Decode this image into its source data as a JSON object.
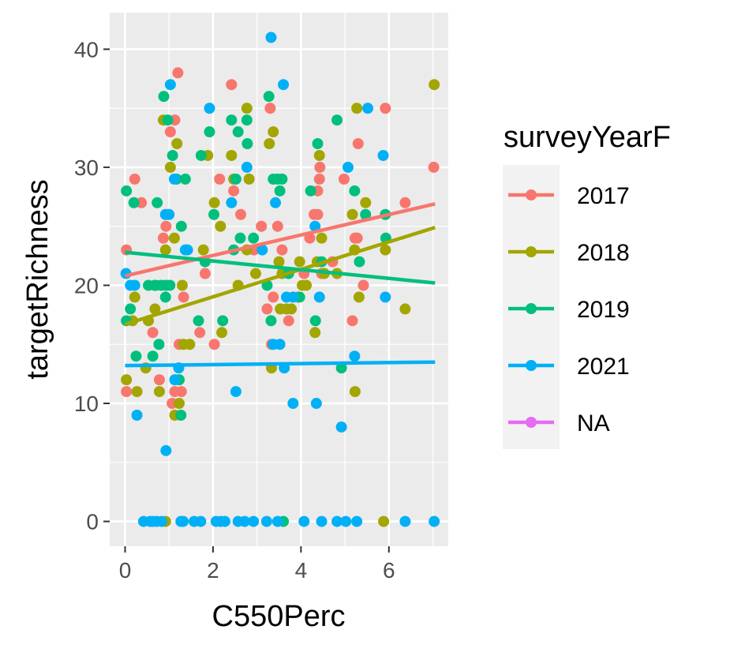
{
  "chart_data": {
    "type": "scatter",
    "xlabel": "C550Perc",
    "ylabel": "targetRichness",
    "xlim": [
      -0.35,
      7.35
    ],
    "ylim": [
      -2.1,
      43.1
    ],
    "x_ticks": [
      0,
      2,
      4,
      6
    ],
    "y_ticks": [
      0,
      10,
      20,
      30,
      40
    ],
    "grid": true,
    "legend": {
      "title": "surveyYearF",
      "position": "right"
    },
    "series": [
      {
        "name": "2017",
        "color": "#F8766D",
        "trend": [
          [
            0,
            20.8
          ],
          [
            7.05,
            26.9
          ]
        ],
        "points": [
          [
            0.03,
            23
          ],
          [
            0.03,
            11
          ],
          [
            0.22,
            29
          ],
          [
            0.37,
            27
          ],
          [
            0.63,
            16
          ],
          [
            0.78,
            12
          ],
          [
            0.87,
            24
          ],
          [
            0.93,
            25
          ],
          [
            1.03,
            33
          ],
          [
            1.07,
            10
          ],
          [
            1.13,
            11
          ],
          [
            1.13,
            34
          ],
          [
            1.2,
            38
          ],
          [
            1.23,
            15
          ],
          [
            1.28,
            11
          ],
          [
            1.33,
            19
          ],
          [
            1.7,
            16
          ],
          [
            1.82,
            21
          ],
          [
            2.03,
            15
          ],
          [
            2.15,
            29
          ],
          [
            2.42,
            37
          ],
          [
            2.47,
            28
          ],
          [
            2.63,
            26
          ],
          [
            2.93,
            23
          ],
          [
            3.1,
            25
          ],
          [
            3.23,
            18
          ],
          [
            3.3,
            35
          ],
          [
            3.33,
            15
          ],
          [
            3.37,
            19
          ],
          [
            3.47,
            25
          ],
          [
            3.57,
            23
          ],
          [
            3.72,
            17
          ],
          [
            3.93,
            19
          ],
          [
            4.07,
            21
          ],
          [
            4.2,
            24
          ],
          [
            4.3,
            26
          ],
          [
            4.38,
            26
          ],
          [
            4.38,
            28
          ],
          [
            4.42,
            29
          ],
          [
            4.43,
            30
          ],
          [
            4.47,
            21
          ],
          [
            4.72,
            22
          ],
          [
            4.98,
            29
          ],
          [
            5.17,
            17
          ],
          [
            5.23,
            24
          ],
          [
            5.28,
            24
          ],
          [
            5.3,
            32
          ],
          [
            5.42,
            20
          ],
          [
            5.92,
            35
          ],
          [
            6.37,
            27
          ],
          [
            7.02,
            30
          ]
        ]
      },
      {
        "name": "2018",
        "color": "#A3A500",
        "trend": [
          [
            0,
            16.7
          ],
          [
            7.05,
            24.9
          ]
        ],
        "points": [
          [
            0.03,
            12
          ],
          [
            0.17,
            17
          ],
          [
            0.22,
            19
          ],
          [
            0.27,
            11
          ],
          [
            0.47,
            13
          ],
          [
            0.53,
            17
          ],
          [
            0.68,
            18
          ],
          [
            0.78,
            11
          ],
          [
            0.87,
            34
          ],
          [
            0.92,
            23
          ],
          [
            0.92,
            0
          ],
          [
            1.03,
            30
          ],
          [
            1.12,
            24
          ],
          [
            1.13,
            9
          ],
          [
            1.18,
            32
          ],
          [
            1.23,
            10
          ],
          [
            1.3,
            20
          ],
          [
            1.33,
            15
          ],
          [
            1.47,
            15
          ],
          [
            1.78,
            23
          ],
          [
            1.88,
            31
          ],
          [
            2.03,
            27
          ],
          [
            2.17,
            25
          ],
          [
            2.2,
            16
          ],
          [
            2.42,
            31
          ],
          [
            2.47,
            29
          ],
          [
            2.57,
            20
          ],
          [
            2.77,
            35
          ],
          [
            2.77,
            23
          ],
          [
            2.82,
            29
          ],
          [
            2.97,
            21
          ],
          [
            3.28,
            32
          ],
          [
            3.33,
            13
          ],
          [
            3.37,
            33
          ],
          [
            3.5,
            22
          ],
          [
            3.53,
            18
          ],
          [
            3.57,
            21
          ],
          [
            3.67,
            18
          ],
          [
            3.78,
            18
          ],
          [
            3.97,
            22
          ],
          [
            4.03,
            20
          ],
          [
            4.12,
            20
          ],
          [
            4.32,
            16
          ],
          [
            4.37,
            22
          ],
          [
            4.42,
            31
          ],
          [
            4.47,
            24
          ],
          [
            4.53,
            21
          ],
          [
            4.82,
            21
          ],
          [
            5.17,
            26
          ],
          [
            5.22,
            23
          ],
          [
            5.23,
            11
          ],
          [
            5.27,
            35
          ],
          [
            5.32,
            19
          ],
          [
            5.47,
            27
          ],
          [
            5.92,
            23
          ],
          [
            6.37,
            18
          ],
          [
            5.88,
            0
          ],
          [
            7.03,
            37
          ]
        ]
      },
      {
        "name": "2019",
        "color": "#00BF7D",
        "trend": [
          [
            0,
            22.8
          ],
          [
            7.05,
            20.2
          ]
        ],
        "points": [
          [
            0.03,
            28
          ],
          [
            0.03,
            17
          ],
          [
            0.12,
            18
          ],
          [
            0.2,
            27
          ],
          [
            0.25,
            14
          ],
          [
            0.53,
            20
          ],
          [
            0.63,
            14
          ],
          [
            0.67,
            20
          ],
          [
            0.7,
            20
          ],
          [
            0.73,
            27
          ],
          [
            0.77,
            15
          ],
          [
            0.82,
            20
          ],
          [
            0.88,
            36
          ],
          [
            0.92,
            19
          ],
          [
            0.93,
            20
          ],
          [
            0.97,
            34
          ],
          [
            1.02,
            20
          ],
          [
            1.08,
            31
          ],
          [
            1.17,
            29
          ],
          [
            1.23,
            12
          ],
          [
            1.27,
            9
          ],
          [
            1.28,
            25
          ],
          [
            1.37,
            29
          ],
          [
            1.67,
            17
          ],
          [
            1.73,
            31
          ],
          [
            1.82,
            22
          ],
          [
            1.92,
            33
          ],
          [
            2.02,
            26
          ],
          [
            2.22,
            17
          ],
          [
            2.42,
            34
          ],
          [
            2.47,
            23
          ],
          [
            2.52,
            29
          ],
          [
            2.57,
            33
          ],
          [
            2.62,
            24
          ],
          [
            2.77,
            34
          ],
          [
            2.78,
            32
          ],
          [
            2.92,
            24
          ],
          [
            3.23,
            20
          ],
          [
            3.27,
            36
          ],
          [
            3.32,
            17
          ],
          [
            3.37,
            29
          ],
          [
            3.47,
            29
          ],
          [
            3.52,
            28
          ],
          [
            3.57,
            29
          ],
          [
            3.6,
            0
          ],
          [
            3.72,
            21
          ],
          [
            3.97,
            19
          ],
          [
            4.22,
            28
          ],
          [
            4.33,
            17
          ],
          [
            4.38,
            32
          ],
          [
            4.47,
            22
          ],
          [
            4.82,
            34
          ],
          [
            4.92,
            13
          ],
          [
            5.22,
            28
          ],
          [
            5.33,
            22
          ],
          [
            5.47,
            26
          ],
          [
            5.92,
            26
          ],
          [
            5.93,
            24
          ]
        ]
      },
      {
        "name": "2021",
        "color": "#00B0F6",
        "trend": [
          [
            0,
            13.2
          ],
          [
            7.05,
            13.5
          ]
        ],
        "points": [
          [
            0.02,
            21
          ],
          [
            0.12,
            20
          ],
          [
            0.22,
            20
          ],
          [
            0.27,
            9
          ],
          [
            0.42,
            0
          ],
          [
            0.57,
            0
          ],
          [
            0.63,
            0
          ],
          [
            0.72,
            0
          ],
          [
            0.83,
            0
          ],
          [
            0.92,
            26
          ],
          [
            0.93,
            6
          ],
          [
            1.0,
            26
          ],
          [
            1.03,
            37
          ],
          [
            1.12,
            29
          ],
          [
            1.13,
            12
          ],
          [
            1.22,
            13
          ],
          [
            1.27,
            0
          ],
          [
            1.32,
            0
          ],
          [
            1.37,
            23
          ],
          [
            1.42,
            23
          ],
          [
            1.57,
            0
          ],
          [
            1.72,
            0
          ],
          [
            1.92,
            35
          ],
          [
            2.07,
            0
          ],
          [
            2.17,
            0
          ],
          [
            2.27,
            0
          ],
          [
            2.42,
            27
          ],
          [
            2.52,
            11
          ],
          [
            2.57,
            0
          ],
          [
            2.72,
            0
          ],
          [
            2.77,
            30
          ],
          [
            2.92,
            0
          ],
          [
            3.12,
            23
          ],
          [
            3.22,
            0
          ],
          [
            3.32,
            41
          ],
          [
            3.37,
            15
          ],
          [
            3.42,
            27
          ],
          [
            3.47,
            0
          ],
          [
            3.52,
            15
          ],
          [
            3.6,
            37
          ],
          [
            3.62,
            13
          ],
          [
            3.67,
            19
          ],
          [
            3.82,
            10
          ],
          [
            3.82,
            19
          ],
          [
            4.07,
            0
          ],
          [
            4.32,
            25
          ],
          [
            4.35,
            10
          ],
          [
            4.42,
            19
          ],
          [
            4.47,
            0
          ],
          [
            4.82,
            0
          ],
          [
            4.92,
            8
          ],
          [
            5.02,
            0
          ],
          [
            5.07,
            30
          ],
          [
            5.22,
            14
          ],
          [
            5.27,
            0
          ],
          [
            5.52,
            35
          ],
          [
            5.87,
            31
          ],
          [
            5.92,
            19
          ],
          [
            6.37,
            0
          ],
          [
            7.03,
            0
          ]
        ]
      },
      {
        "name": "NA",
        "color": "#E76BF3",
        "trend": [],
        "points": []
      }
    ]
  }
}
